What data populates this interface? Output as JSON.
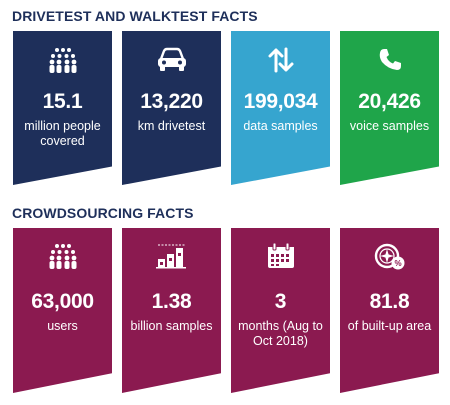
{
  "colors": {
    "navy": "#1e2f5a",
    "light_blue": "#36a5cf",
    "green": "#1fa54a",
    "maroon": "#8b1a50",
    "title": "#1e2f5a"
  },
  "drivetest": {
    "title": "DRIVETEST AND WALKTEST FACTS",
    "tiles": [
      {
        "icon": "people-group-icon",
        "value": "15.1",
        "label": "million people covered",
        "color": "navy"
      },
      {
        "icon": "car-icon",
        "value": "13,220",
        "label": "km drivetest",
        "color": "navy"
      },
      {
        "icon": "up-down-arrows-icon",
        "value": "199,034",
        "label": "data samples",
        "color": "light_blue"
      },
      {
        "icon": "phone-icon",
        "value": "20,426",
        "label": "voice samples",
        "color": "green"
      }
    ]
  },
  "crowdsourcing": {
    "title": "CROWDSOURCING FACTS",
    "tiles": [
      {
        "icon": "people-group-icon",
        "value": "63,000",
        "label": "users",
        "color": "maroon"
      },
      {
        "icon": "bar-chart-icon",
        "value": "1.38",
        "label": "billion samples",
        "color": "maroon"
      },
      {
        "icon": "calendar-icon",
        "value": "3",
        "label": "months (Aug to Oct 2018)",
        "color": "maroon"
      },
      {
        "icon": "compass-percent-icon",
        "value": "81.8",
        "label": "of built-up area",
        "color": "maroon"
      }
    ]
  }
}
